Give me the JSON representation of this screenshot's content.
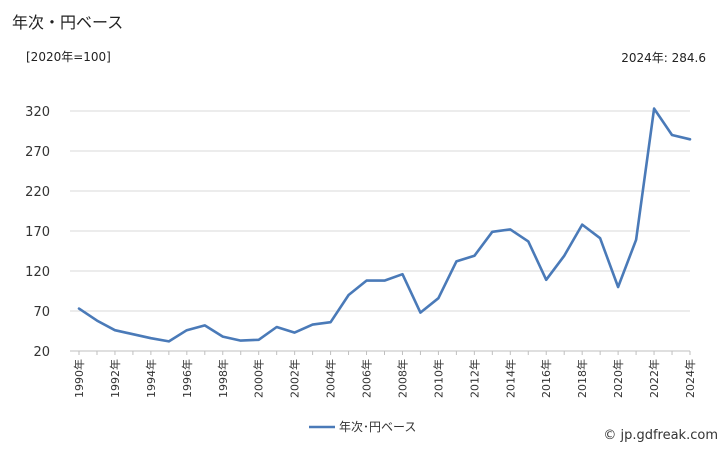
{
  "page": {
    "title": "年次・円ベース",
    "unit_note": "[2020年=100]",
    "latest_value": "2024年: 284.6",
    "source": "© jp.gdfreak.com"
  },
  "chart_data": {
    "type": "line",
    "title": "年次・円ベース",
    "xlabel": "",
    "ylabel": "",
    "ylim": [
      20,
      340
    ],
    "yticks": [
      20,
      70,
      120,
      170,
      220,
      270,
      320
    ],
    "grid": true,
    "legend_position": "bottom-center",
    "x": [
      "1990年",
      "1991年",
      "1992年",
      "1993年",
      "1994年",
      "1995年",
      "1996年",
      "1997年",
      "1998年",
      "1999年",
      "2000年",
      "2001年",
      "2002年",
      "2003年",
      "2004年",
      "2005年",
      "2006年",
      "2007年",
      "2008年",
      "2009年",
      "2010年",
      "2011年",
      "2012年",
      "2013年",
      "2014年",
      "2015年",
      "2016年",
      "2017年",
      "2018年",
      "2019年",
      "2020年",
      "2021年",
      "2022年",
      "2023年",
      "2024年"
    ],
    "xtick_labels": [
      "1990年",
      "1992年",
      "1994年",
      "1996年",
      "1998年",
      "2000年",
      "2002年",
      "2004年",
      "2006年",
      "2008年",
      "2010年",
      "2012年",
      "2014年",
      "2016年",
      "2018年",
      "2020年",
      "2022年",
      "2024年"
    ],
    "series": [
      {
        "name": "年次･円ベース",
        "color": "#4a7ab8",
        "values": [
          73,
          58,
          46,
          41,
          36,
          32,
          46,
          52,
          38,
          33,
          34,
          50,
          43,
          53,
          56,
          90,
          108,
          108,
          116,
          68,
          86,
          132,
          139,
          169,
          172,
          157,
          109,
          139,
          178,
          161,
          100,
          159,
          323,
          290,
          284.6
        ]
      }
    ]
  }
}
